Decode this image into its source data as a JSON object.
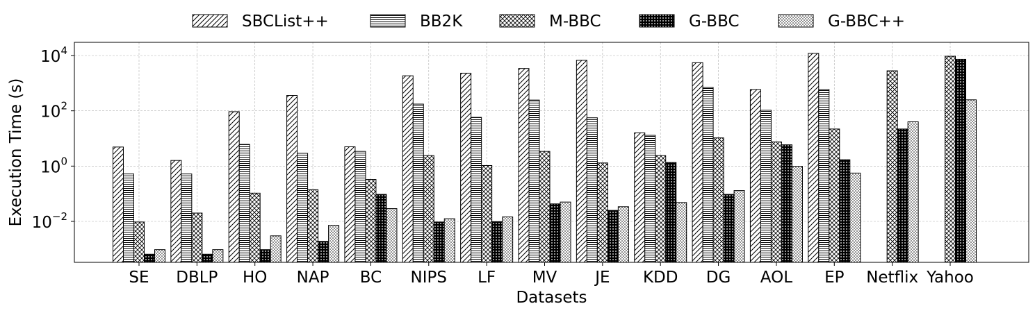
{
  "chart_data": {
    "type": "bar",
    "title": "",
    "xlabel": "Datasets",
    "ylabel": "Execution Time (s)",
    "yscale": "log",
    "ylim": [
      0.00033,
      30000
    ],
    "grid": true,
    "legend_position": "top-center",
    "categories": [
      "SE",
      "DBLP",
      "HO",
      "NAP",
      "BC",
      "NIPS",
      "LF",
      "MV",
      "JE",
      "KDD",
      "DG",
      "AOL",
      "EP",
      "Netflix",
      "Yahoo"
    ],
    "y_ticks": [
      {
        "value": 0.01,
        "label": "10",
        "exp": "−2"
      },
      {
        "value": 1,
        "label": "10",
        "exp": "0"
      },
      {
        "value": 100,
        "label": "10",
        "exp": "2"
      },
      {
        "value": 10000,
        "label": "10",
        "exp": "4"
      }
    ],
    "series": [
      {
        "name": "SBCList++",
        "pattern": "diag",
        "values": [
          4.9,
          1.6,
          93,
          360,
          5.0,
          1850,
          2300,
          3400,
          6700,
          16,
          5500,
          590,
          12000,
          null,
          null
        ]
      },
      {
        "name": "BB2K",
        "pattern": "hlines",
        "values": [
          0.52,
          0.52,
          6.1,
          2.9,
          3.4,
          175,
          58,
          245,
          56,
          13,
          700,
          105,
          590,
          null,
          null
        ]
      },
      {
        "name": "M-BBC",
        "pattern": "crosshatch",
        "values": [
          0.0095,
          0.02,
          0.105,
          0.14,
          0.33,
          2.4,
          1.05,
          3.4,
          1.3,
          2.4,
          10.5,
          7.5,
          22,
          2800,
          9400
        ]
      },
      {
        "name": "G-BBC",
        "pattern": "dense",
        "values": [
          0.00065,
          0.00065,
          0.00095,
          0.0019,
          0.095,
          0.0095,
          0.0098,
          0.043,
          0.025,
          1.35,
          0.095,
          5.9,
          1.7,
          22,
          7300
        ]
      },
      {
        "name": "G-BBC++",
        "pattern": "dots",
        "values": [
          0.00095,
          0.00095,
          0.003,
          0.0072,
          0.029,
          0.0125,
          0.0145,
          0.05,
          0.034,
          0.048,
          0.13,
          0.98,
          0.56,
          40,
          250
        ]
      }
    ]
  }
}
